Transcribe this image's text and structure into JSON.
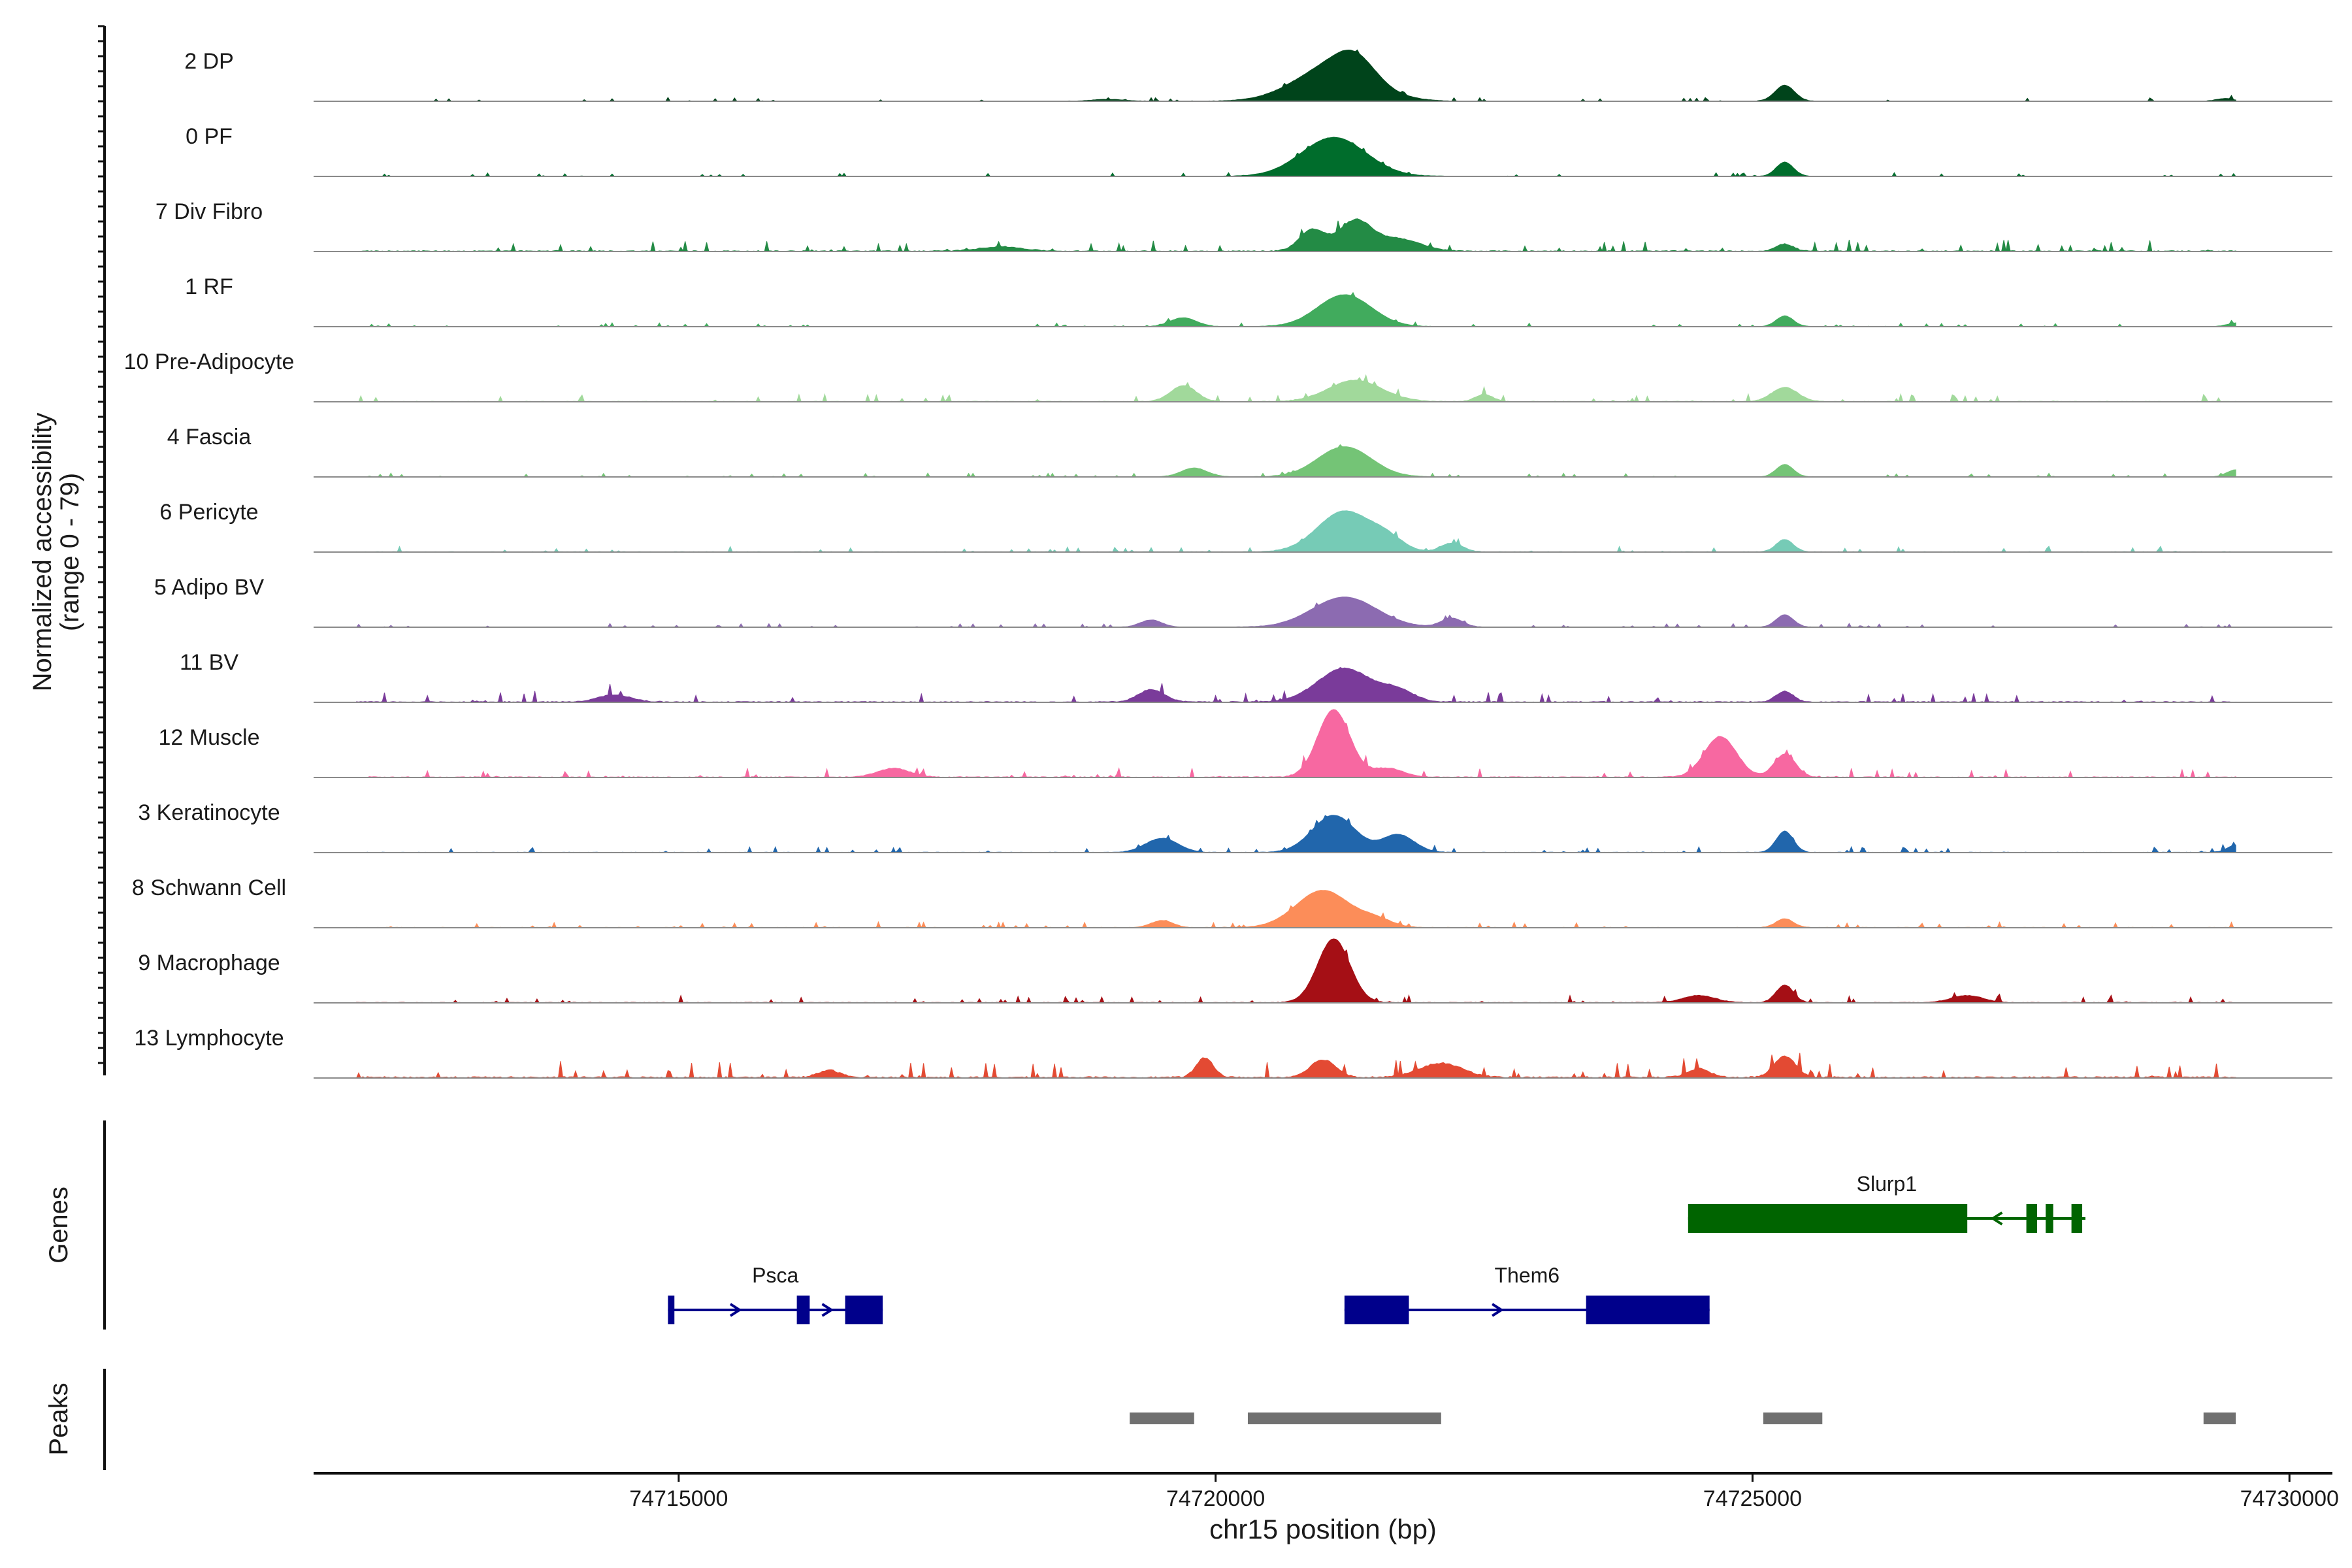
{
  "chart_data": {
    "type": "area",
    "title": "",
    "xlabel": "chr15 position (bp)",
    "ylabel": "Normalized accessibility",
    "ylabel_range": "(range 0 - 79)",
    "xlim": [
      74711600,
      74730400
    ],
    "ylim": [
      0,
      79
    ],
    "x_ticks": [
      74715000,
      74720000,
      74725000,
      74730000
    ],
    "x_tick_labels": [
      "74715000",
      "74720000",
      "74725000",
      "74730000"
    ],
    "track_labels": {
      "genes": "Genes",
      "peaks": "Peaks"
    },
    "series": [
      {
        "name": "2 DP",
        "color": "#00441b",
        "noise": 2,
        "peaks": [
          [
            74721100,
            350,
            40
          ],
          [
            74721300,
            180,
            22
          ],
          [
            74725300,
            90,
            18
          ],
          [
            74729400,
            80,
            3
          ],
          [
            74719000,
            150,
            2
          ]
        ]
      },
      {
        "name": "0 PF",
        "color": "#006d2c",
        "noise": 2,
        "peaks": [
          [
            74721100,
            300,
            44
          ],
          [
            74725300,
            80,
            16
          ]
        ]
      },
      {
        "name": "7 Div Fibro",
        "color": "#238b45",
        "noise": 6,
        "peaks": [
          [
            74720900,
            120,
            24
          ],
          [
            74721300,
            150,
            34
          ],
          [
            74721700,
            200,
            14
          ],
          [
            74725300,
            80,
            8
          ],
          [
            74718000,
            200,
            5
          ]
        ]
      },
      {
        "name": "1 RF",
        "color": "#41ab5d",
        "noise": 2,
        "peaks": [
          [
            74721200,
            250,
            36
          ],
          [
            74719700,
            120,
            10
          ],
          [
            74725300,
            80,
            12
          ],
          [
            74729500,
            80,
            4
          ]
        ]
      },
      {
        "name": "10 Pre-Adipocyte",
        "color": "#a1d99b",
        "noise": 4,
        "peaks": [
          [
            74721300,
            250,
            24
          ],
          [
            74719700,
            120,
            18
          ],
          [
            74725300,
            120,
            16
          ],
          [
            74722500,
            80,
            8
          ]
        ]
      },
      {
        "name": "4 Fascia",
        "color": "#74c476",
        "noise": 2,
        "peaks": [
          [
            74721200,
            250,
            34
          ],
          [
            74719800,
            120,
            10
          ],
          [
            74725300,
            80,
            14
          ],
          [
            74729500,
            80,
            8
          ]
        ]
      },
      {
        "name": "6 Pericyte",
        "color": "#76cbb6",
        "noise": 3,
        "peaks": [
          [
            74721200,
            250,
            46
          ],
          [
            74721600,
            150,
            12
          ],
          [
            74722200,
            100,
            10
          ],
          [
            74725300,
            80,
            14
          ]
        ]
      },
      {
        "name": "5 Adipo BV",
        "color": "#8c6bb1",
        "noise": 2,
        "peaks": [
          [
            74721200,
            300,
            34
          ],
          [
            74719400,
            100,
            8
          ],
          [
            74722200,
            100,
            10
          ],
          [
            74725300,
            80,
            14
          ]
        ]
      },
      {
        "name": "11 BV",
        "color": "#7a3b9a",
        "noise": 6,
        "peaks": [
          [
            74721200,
            250,
            38
          ],
          [
            74721700,
            150,
            12
          ],
          [
            74719400,
            120,
            14
          ],
          [
            74725300,
            80,
            12
          ],
          [
            74714400,
            150,
            8
          ]
        ]
      },
      {
        "name": "12 Muscle",
        "color": "#f768a1",
        "noise": 5,
        "peaks": [
          [
            74721100,
            150,
            76
          ],
          [
            74724700,
            150,
            46
          ],
          [
            74725300,
            100,
            26
          ],
          [
            74717000,
            150,
            10
          ],
          [
            74721600,
            150,
            10
          ]
        ]
      },
      {
        "name": "3 Keratinocyte",
        "color": "#2166ac",
        "noise": 3,
        "peaks": [
          [
            74721100,
            200,
            42
          ],
          [
            74721700,
            150,
            20
          ],
          [
            74719500,
            150,
            16
          ],
          [
            74725300,
            80,
            24
          ],
          [
            74729500,
            80,
            8
          ]
        ]
      },
      {
        "name": "8 Schwann Cell",
        "color": "#fc8d59",
        "noise": 3,
        "peaks": [
          [
            74721000,
            250,
            42
          ],
          [
            74721500,
            150,
            8
          ],
          [
            74719500,
            100,
            8
          ],
          [
            74725300,
            80,
            10
          ]
        ]
      },
      {
        "name": "9 Macrophage",
        "color": "#a50f15",
        "noise": 4,
        "peaks": [
          [
            74721100,
            150,
            72
          ],
          [
            74724500,
            150,
            8
          ],
          [
            74725300,
            80,
            20
          ],
          [
            74727000,
            150,
            8
          ]
        ]
      },
      {
        "name": "13 Lymphocyte",
        "color": "#e34a33",
        "noise": 9,
        "peaks": [
          [
            74721000,
            120,
            20
          ],
          [
            74722100,
            200,
            16
          ],
          [
            74719900,
            80,
            22
          ],
          [
            74725300,
            100,
            24
          ],
          [
            74716400,
            100,
            8
          ],
          [
            74724500,
            100,
            10
          ]
        ]
      }
    ],
    "genes": [
      {
        "name": "Slurp1",
        "strand": "-",
        "color": "#006400",
        "start": 74724400,
        "end": 74728100,
        "exons": [
          [
            74724400,
            74727000
          ],
          [
            74727550,
            74727650
          ],
          [
            74727730,
            74727800
          ],
          [
            74727970,
            74728070
          ]
        ]
      },
      {
        "name": "Psca",
        "strand": "+",
        "color": "#00008b",
        "start": 74714900,
        "end": 74716900,
        "exons": [
          [
            74714900,
            74714960
          ],
          [
            74716100,
            74716220
          ],
          [
            74716550,
            74716900
          ]
        ]
      },
      {
        "name": "Them6",
        "strand": "+",
        "color": "#00008b",
        "start": 74721200,
        "end": 74724600,
        "exons": [
          [
            74721200,
            74721800
          ],
          [
            74723450,
            74724600
          ]
        ]
      }
    ],
    "peaks": [
      [
        74719200,
        74719800
      ],
      [
        74720300,
        74722100
      ],
      [
        74725100,
        74725650
      ],
      [
        74729200,
        74729500
      ]
    ],
    "peak_color": "#707070"
  }
}
